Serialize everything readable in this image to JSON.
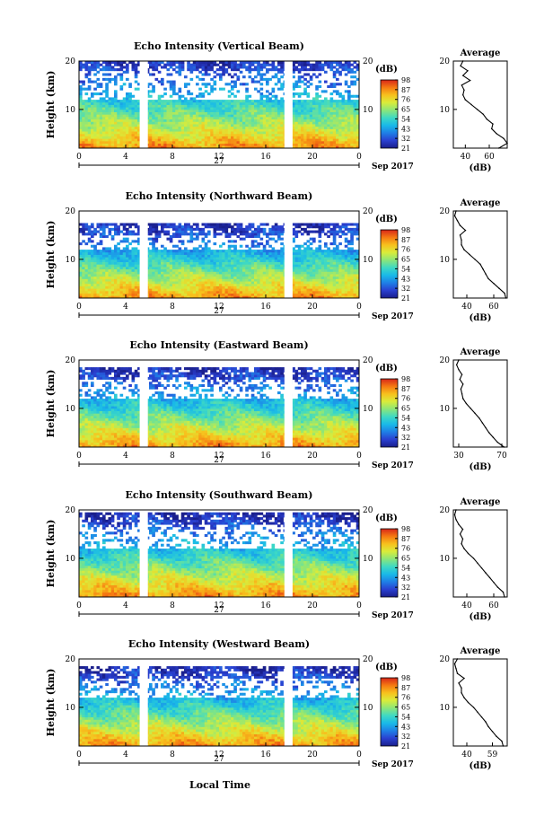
{
  "figure": {
    "xlabel": "Local Time",
    "colorbar_unit": "(dB)",
    "colorbar_ticks": [
      "21",
      "32",
      "43",
      "54",
      "65",
      "76",
      "87",
      "98"
    ],
    "colormap": [
      "#1a1f8c",
      "#2a3fd0",
      "#1f7fe6",
      "#19b9e8",
      "#3ed9c4",
      "#8be67a",
      "#d9ec3b",
      "#f7c11d",
      "#f57a12",
      "#d7261a"
    ],
    "date_label": "Sep 2017",
    "date_day": "27",
    "xticks": [
      "0",
      "4",
      "8",
      "12",
      "16",
      "20",
      "0"
    ],
    "yticks": [
      "20",
      "10"
    ],
    "ylabel": "Height (km)",
    "avg_title": "Average",
    "avg_xlabel": "(dB)"
  },
  "chart_data": [
    {
      "type": "heatmap",
      "title": "Echo Intensity (Vertical Beam)",
      "xlabel": "",
      "ylabel": "Height (km)",
      "xlim": [
        0,
        24
      ],
      "ylim": [
        2,
        20
      ],
      "data_gaps_hours": [
        [
          5.2,
          5.9
        ],
        [
          17.6,
          18.3
        ]
      ],
      "top_height_km": 20,
      "avg_xticks": [
        "40",
        "60"
      ],
      "avg_xlim": [
        30,
        75
      ],
      "avg_profile": {
        "height_km": [
          2,
          3,
          4,
          5,
          6,
          7,
          8,
          9,
          10,
          11,
          12,
          13,
          14,
          15,
          16,
          17,
          18,
          19,
          20
        ],
        "db": [
          68,
          75,
          72,
          66,
          62,
          63,
          58,
          55,
          50,
          45,
          40,
          38,
          39,
          37,
          44,
          38,
          42,
          36,
          38
        ]
      }
    },
    {
      "type": "heatmap",
      "title": "Echo Intensity (Northward Beam)",
      "xlabel": "",
      "ylabel": "Height (km)",
      "xlim": [
        0,
        24
      ],
      "ylim": [
        2,
        20
      ],
      "data_gaps_hours": [
        [
          5.2,
          5.9
        ],
        [
          17.6,
          18.3
        ]
      ],
      "top_height_km": 17,
      "avg_xticks": [
        "40",
        "60"
      ],
      "avg_xlim": [
        30,
        70
      ],
      "avg_profile": {
        "height_km": [
          2,
          3,
          4,
          5,
          6,
          7,
          8,
          9,
          10,
          11,
          12,
          13,
          14,
          15,
          16,
          17,
          18,
          19,
          20
        ],
        "db": [
          69,
          68,
          64,
          60,
          56,
          54,
          52,
          50,
          46,
          42,
          38,
          36,
          36,
          35,
          39,
          35,
          33,
          31,
          32
        ]
      }
    },
    {
      "type": "heatmap",
      "title": "Echo Intensity (Eastward Beam)",
      "xlabel": "",
      "ylabel": "Height (km)",
      "xlim": [
        0,
        24
      ],
      "ylim": [
        2,
        20
      ],
      "data_gaps_hours": [
        [
          5.2,
          5.9
        ],
        [
          17.6,
          18.3
        ]
      ],
      "top_height_km": 18,
      "avg_xticks": [
        "30",
        "70"
      ],
      "avg_xlim": [
        25,
        75
      ],
      "avg_profile": {
        "height_km": [
          2,
          3,
          4,
          5,
          6,
          7,
          8,
          9,
          10,
          11,
          12,
          13,
          14,
          15,
          16,
          17,
          18,
          19,
          20
        ],
        "db": [
          72,
          66,
          62,
          58,
          55,
          52,
          49,
          45,
          41,
          37,
          34,
          33,
          32,
          34,
          31,
          33,
          30,
          28,
          30
        ]
      }
    },
    {
      "type": "heatmap",
      "title": "Echo Intensity (Southward Beam)",
      "xlabel": "",
      "ylabel": "Height (km)",
      "xlim": [
        0,
        24
      ],
      "ylim": [
        2,
        20
      ],
      "data_gaps_hours": [
        [
          5.2,
          5.9
        ],
        [
          17.6,
          18.3
        ]
      ],
      "top_height_km": 19,
      "avg_xticks": [
        "40",
        "60"
      ],
      "avg_xlim": [
        30,
        70
      ],
      "avg_profile": {
        "height_km": [
          2,
          3,
          4,
          5,
          6,
          7,
          8,
          9,
          10,
          11,
          12,
          13,
          14,
          15,
          16,
          17,
          18,
          19,
          20
        ],
        "db": [
          68,
          67,
          63,
          60,
          57,
          54,
          51,
          48,
          45,
          41,
          38,
          36,
          37,
          35,
          37,
          34,
          32,
          31,
          32
        ]
      }
    },
    {
      "type": "heatmap",
      "title": "Echo Intensity (Westward Beam)",
      "xlabel": "Local Time",
      "ylabel": "Height (km)",
      "xlim": [
        0,
        24
      ],
      "ylim": [
        2,
        20
      ],
      "data_gaps_hours": [
        [
          5.2,
          5.9
        ],
        [
          17.6,
          18.3
        ]
      ],
      "top_height_km": 18,
      "avg_xticks": [
        "40",
        "59"
      ],
      "avg_xlim": [
        30,
        70
      ],
      "avg_profile": {
        "height_km": [
          2,
          3,
          4,
          5,
          6,
          7,
          8,
          9,
          10,
          11,
          12,
          13,
          14,
          15,
          16,
          17,
          18,
          19,
          20
        ],
        "db": [
          67,
          66,
          62,
          59,
          56,
          54,
          51,
          48,
          45,
          41,
          38,
          36,
          36,
          34,
          38,
          33,
          32,
          31,
          33
        ]
      }
    }
  ]
}
